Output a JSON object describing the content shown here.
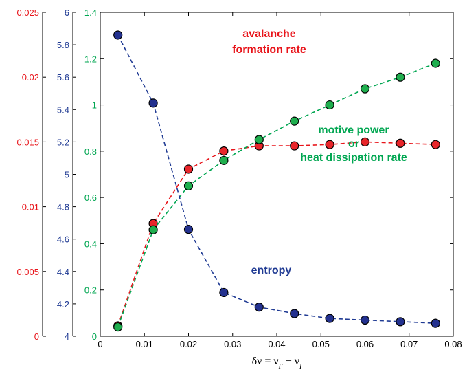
{
  "chart_data": {
    "type": "line",
    "x": [
      0.004,
      0.012,
      0.02,
      0.028,
      0.036,
      0.044,
      0.052,
      0.06,
      0.068,
      0.076
    ],
    "xlim": [
      0,
      0.08
    ],
    "xticks": [
      "0",
      "0.01",
      "0.02",
      "0.03",
      "0.04",
      "0.05",
      "0.06",
      "0.07",
      "0.08"
    ],
    "xlabel_parts": [
      "δν = ν",
      "F",
      " − ν",
      "I"
    ],
    "grid": false,
    "axes": [
      {
        "id": "red",
        "color": "#e8141a",
        "ylim": [
          0,
          0.025
        ],
        "ticks": [
          "0",
          "0.005",
          "0.01",
          "0.015",
          "0.02",
          "0.025"
        ]
      },
      {
        "id": "blue",
        "color": "#1f3a93",
        "ylim": [
          4,
          6
        ],
        "ticks": [
          "4",
          "4.2",
          "4.4",
          "4.6",
          "4.8",
          "5",
          "5.2",
          "5.4",
          "5.6",
          "5.8",
          "6"
        ]
      },
      {
        "id": "green",
        "color": "#00a651",
        "ylim": [
          0,
          1.4
        ],
        "ticks": [
          "0",
          "0.2",
          "0.4",
          "0.6",
          "0.8",
          "1",
          "1.2",
          "1.4"
        ]
      }
    ],
    "series": [
      {
        "name": "avalanche formation rate",
        "axis": "red",
        "color": "#e8141a",
        "fill": "#e8252a",
        "values": [
          0.0008,
          0.0087,
          0.0129,
          0.0143,
          0.0147,
          0.0147,
          0.0148,
          0.015,
          0.0149,
          0.0148
        ]
      },
      {
        "name": "motive power or heat dissipation rate",
        "axis": "green",
        "color": "#00a651",
        "fill": "#1fae4e",
        "values": [
          0.04,
          0.46,
          0.65,
          0.76,
          0.85,
          0.93,
          1.0,
          1.07,
          1.12,
          1.18
        ]
      },
      {
        "name": "entropy",
        "axis": "blue",
        "color": "#1f3a93",
        "fill": "#23318f",
        "values": [
          5.86,
          5.44,
          4.66,
          4.27,
          4.18,
          4.14,
          4.11,
          4.1,
          4.09,
          4.08
        ]
      }
    ],
    "annotations": {
      "red": [
        "avalanche",
        "formation rate"
      ],
      "green": [
        "motive power",
        "or",
        "heat dissipation rate"
      ],
      "blue": [
        "entropy"
      ]
    }
  }
}
